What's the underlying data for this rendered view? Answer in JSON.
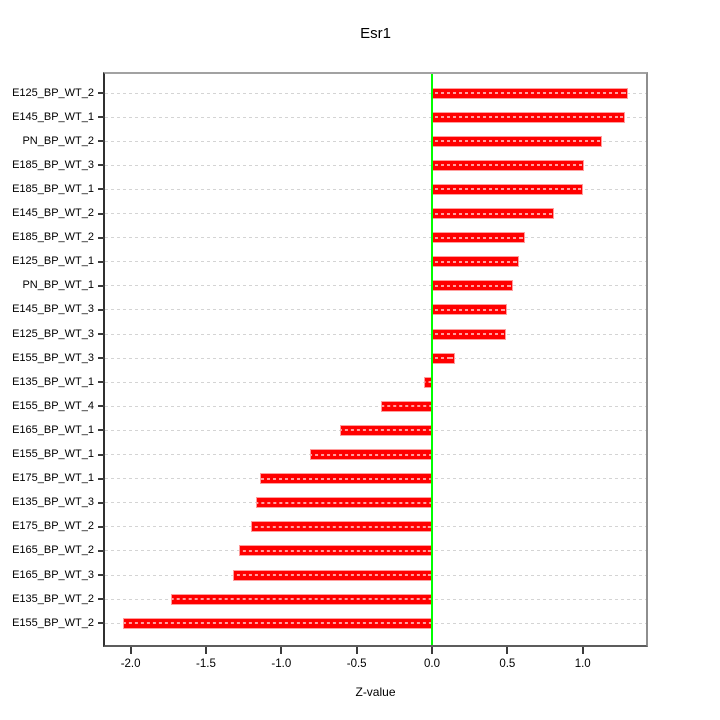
{
  "chart_data": {
    "type": "bar",
    "orientation": "horizontal",
    "title": "Esr1",
    "xlabel": "Z-value",
    "ylabel": "",
    "xlim": [
      -2.17,
      1.42
    ],
    "x_ticks": [
      -2.0,
      -1.5,
      -1.0,
      -0.5,
      0.0,
      0.5,
      1.0
    ],
    "x_tick_labels": [
      "-2.0",
      "-1.5",
      "-1.0",
      "-0.5",
      "0.0",
      "0.5",
      "1.0"
    ],
    "categories": [
      "E125_BP_WT_2",
      "E145_BP_WT_1",
      "PN_BP_WT_2",
      "E185_BP_WT_3",
      "E185_BP_WT_1",
      "E145_BP_WT_2",
      "E185_BP_WT_2",
      "E125_BP_WT_1",
      "PN_BP_WT_1",
      "E145_BP_WT_3",
      "E125_BP_WT_3",
      "E155_BP_WT_3",
      "E135_BP_WT_1",
      "E155_BP_WT_4",
      "E165_BP_WT_1",
      "E155_BP_WT_1",
      "E175_BP_WT_1",
      "E135_BP_WT_3",
      "E175_BP_WT_2",
      "E165_BP_WT_2",
      "E165_BP_WT_3",
      "E135_BP_WT_2",
      "E155_BP_WT_2"
    ],
    "values": [
      1.3,
      1.28,
      1.13,
      1.01,
      1.0,
      0.81,
      0.62,
      0.58,
      0.54,
      0.5,
      0.49,
      0.15,
      -0.05,
      -0.34,
      -0.61,
      -0.81,
      -1.14,
      -1.17,
      -1.2,
      -1.28,
      -1.32,
      -1.73,
      -2.05
    ],
    "bar_color": "#ff0000",
    "bar_edge_color": "#ff9d9d",
    "zero_line_color": "#00ff00",
    "grid": true,
    "grid_color": "#d4d4d4",
    "legend": "none"
  }
}
